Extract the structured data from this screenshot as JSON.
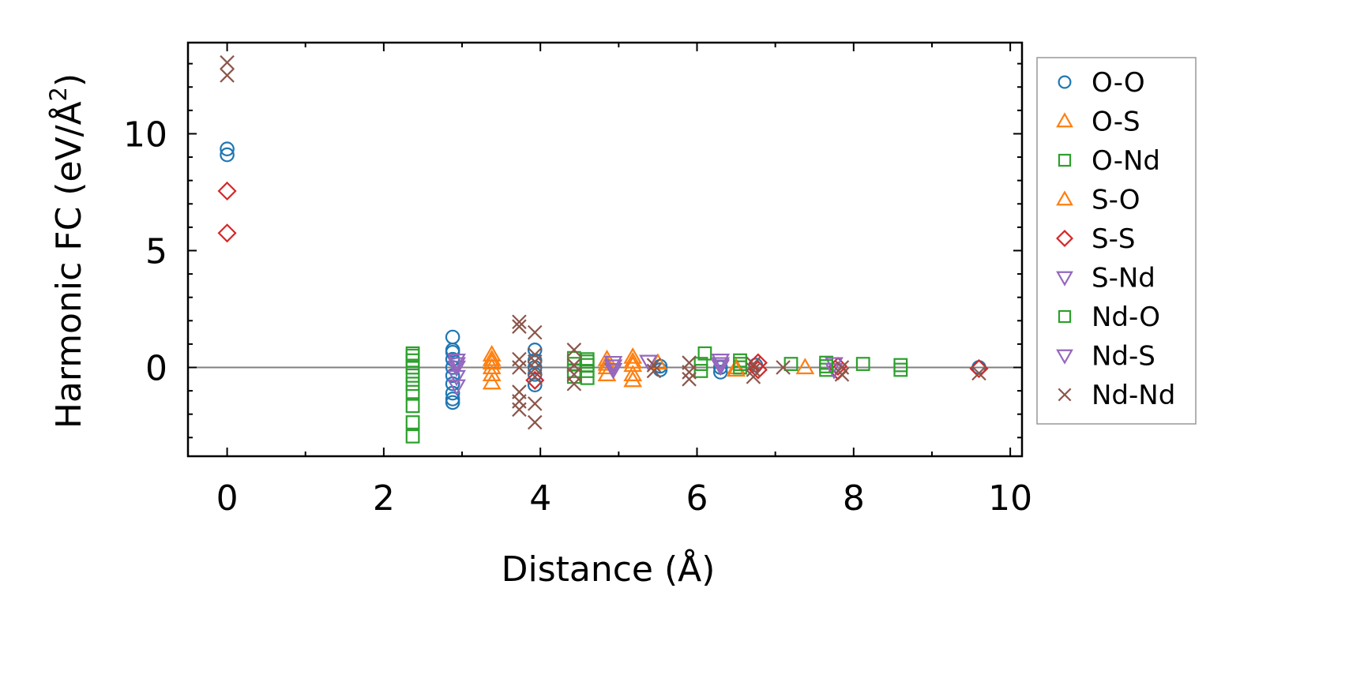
{
  "chart_data": {
    "type": "scatter",
    "title": "",
    "xlabel": "Distance (Å)",
    "ylabel_main": "Harmonic FC (eV/Å",
    "ylabel_sup": "2",
    "ylabel_close": ")",
    "xlim": [
      -0.5,
      10.15
    ],
    "ylim": [
      -3.8,
      13.9
    ],
    "xticks": [
      0,
      2,
      4,
      6,
      8,
      10
    ],
    "xtick_labels": [
      "0",
      "2",
      "4",
      "6",
      "8",
      "10"
    ],
    "yticks": [
      0,
      5,
      10
    ],
    "ytick_labels": [
      "0",
      "5",
      "10"
    ],
    "zero_line": true,
    "legend_position": "right-outside",
    "colors": {
      "blue": "#1f77b4",
      "orange": "#ff7f0e",
      "green": "#2ca02c",
      "red": "#d62728",
      "purple": "#9467bd",
      "brown": "#8c564b",
      "zero_line": "#808080"
    },
    "series": [
      {
        "name": "O-O",
        "marker": "circle",
        "color": "#1f77b4",
        "points": [
          [
            0,
            9.35
          ],
          [
            0,
            9.1
          ],
          [
            2.88,
            1.3
          ],
          [
            2.88,
            0.75
          ],
          [
            2.88,
            0.65
          ],
          [
            2.88,
            0.35
          ],
          [
            2.88,
            0
          ],
          [
            2.88,
            -0.35
          ],
          [
            2.88,
            -0.7
          ],
          [
            2.88,
            -1.1
          ],
          [
            2.88,
            -1.35
          ],
          [
            2.88,
            -1.5
          ],
          [
            3.93,
            0.75
          ],
          [
            3.93,
            0.3
          ],
          [
            3.93,
            0
          ],
          [
            3.93,
            -0.3
          ],
          [
            3.93,
            -0.75
          ],
          [
            5.53,
            0.05
          ],
          [
            5.53,
            -0.1
          ],
          [
            6.3,
            0
          ],
          [
            6.3,
            -0.2
          ],
          [
            6.75,
            0.1
          ],
          [
            9.6,
            0
          ]
        ]
      },
      {
        "name": "O-S",
        "marker": "triangle-up",
        "color": "#ff7f0e",
        "points": [
          [
            3.38,
            0.55
          ],
          [
            3.38,
            0.2
          ],
          [
            3.38,
            0
          ],
          [
            3.38,
            -0.3
          ],
          [
            3.38,
            -0.65
          ],
          [
            4.85,
            0.35
          ],
          [
            4.85,
            0
          ],
          [
            4.85,
            -0.3
          ],
          [
            5.18,
            0.45
          ],
          [
            5.18,
            0.1
          ],
          [
            5.18,
            -0.3
          ],
          [
            5.18,
            -0.55
          ],
          [
            5.5,
            0.2
          ],
          [
            6.5,
            0
          ],
          [
            7.38,
            0
          ]
        ]
      },
      {
        "name": "O-Nd",
        "marker": "square",
        "color": "#2ca02c",
        "points": [
          [
            2.37,
            0.6
          ],
          [
            2.37,
            0.3
          ],
          [
            2.37,
            0
          ],
          [
            2.37,
            -0.35
          ],
          [
            2.37,
            -0.7
          ],
          [
            2.37,
            -1.05
          ],
          [
            2.37,
            -1.65
          ],
          [
            2.37,
            -2.35
          ],
          [
            2.37,
            -2.95
          ],
          [
            4.43,
            0.4
          ],
          [
            4.43,
            0.15
          ],
          [
            4.43,
            -0.15
          ],
          [
            4.43,
            -0.4
          ],
          [
            4.6,
            0.35
          ],
          [
            4.6,
            0.1
          ],
          [
            4.6,
            -0.15
          ],
          [
            4.6,
            -0.45
          ],
          [
            6.05,
            0.15
          ],
          [
            6.05,
            -0.15
          ],
          [
            6.1,
            0.6
          ],
          [
            6.55,
            0.3
          ],
          [
            6.55,
            0
          ],
          [
            7.2,
            0.15
          ],
          [
            7.65,
            0.2
          ],
          [
            7.65,
            -0.1
          ],
          [
            8.12,
            0.15
          ],
          [
            8.6,
            0.1
          ],
          [
            8.6,
            -0.1
          ]
        ]
      },
      {
        "name": "S-O",
        "marker": "triangle-up",
        "color": "#ff7f0e",
        "points": [
          [
            3.38,
            0.35
          ],
          [
            4.85,
            0.15
          ],
          [
            5.18,
            0.25
          ],
          [
            6.5,
            -0.1
          ]
        ]
      },
      {
        "name": "S-S",
        "marker": "diamond",
        "color": "#d62728",
        "points": [
          [
            0,
            7.55
          ],
          [
            0,
            5.75
          ],
          [
            3.93,
            -0.55
          ],
          [
            6.78,
            0.2
          ],
          [
            6.78,
            -0.1
          ],
          [
            7.8,
            0.05
          ],
          [
            7.8,
            -0.15
          ],
          [
            9.6,
            -0.05
          ]
        ]
      },
      {
        "name": "S-Nd",
        "marker": "triangle-down",
        "color": "#9467bd",
        "points": [
          [
            2.93,
            0.3
          ],
          [
            2.93,
            0
          ],
          [
            2.93,
            -0.4
          ],
          [
            2.93,
            -0.8
          ],
          [
            4.93,
            0.2
          ],
          [
            4.93,
            -0.1
          ],
          [
            5.38,
            0.25
          ],
          [
            6.3,
            0.3
          ],
          [
            6.3,
            0.05
          ],
          [
            7.75,
            0.15
          ],
          [
            7.75,
            -0.1
          ]
        ]
      },
      {
        "name": "Nd-O",
        "marker": "square",
        "color": "#2ca02c",
        "points": [
          [
            2.37,
            0.5
          ],
          [
            4.6,
            0.25
          ],
          [
            6.55,
            0.15
          ],
          [
            7.65,
            0.05
          ]
        ]
      },
      {
        "name": "Nd-S",
        "marker": "triangle-down",
        "color": "#9467bd",
        "points": [
          [
            2.93,
            0.15
          ],
          [
            4.93,
            0.05
          ],
          [
            6.3,
            0.15
          ]
        ]
      },
      {
        "name": "Nd-Nd",
        "marker": "x",
        "color": "#8c564b",
        "points": [
          [
            0,
            13.05
          ],
          [
            0,
            12.5
          ],
          [
            3.73,
            1.95
          ],
          [
            3.73,
            1.75
          ],
          [
            3.73,
            0.35
          ],
          [
            3.73,
            0
          ],
          [
            3.73,
            -1.05
          ],
          [
            3.73,
            -1.45
          ],
          [
            3.73,
            -1.8
          ],
          [
            3.93,
            1.5
          ],
          [
            3.93,
            0.55
          ],
          [
            3.93,
            0.25
          ],
          [
            3.93,
            -0.05
          ],
          [
            3.93,
            -0.4
          ],
          [
            3.93,
            -1.55
          ],
          [
            3.93,
            -2.35
          ],
          [
            4.43,
            0.75
          ],
          [
            4.43,
            0.1
          ],
          [
            4.43,
            -0.3
          ],
          [
            4.43,
            -0.7
          ],
          [
            5.45,
            0.1
          ],
          [
            5.45,
            -0.15
          ],
          [
            5.9,
            0.2
          ],
          [
            5.9,
            -0.2
          ],
          [
            5.9,
            -0.5
          ],
          [
            6.72,
            0.15
          ],
          [
            6.72,
            -0.1
          ],
          [
            6.72,
            -0.4
          ],
          [
            7.1,
            0
          ],
          [
            7.85,
            0
          ],
          [
            7.85,
            -0.3
          ],
          [
            9.6,
            -0.25
          ]
        ]
      }
    ]
  }
}
